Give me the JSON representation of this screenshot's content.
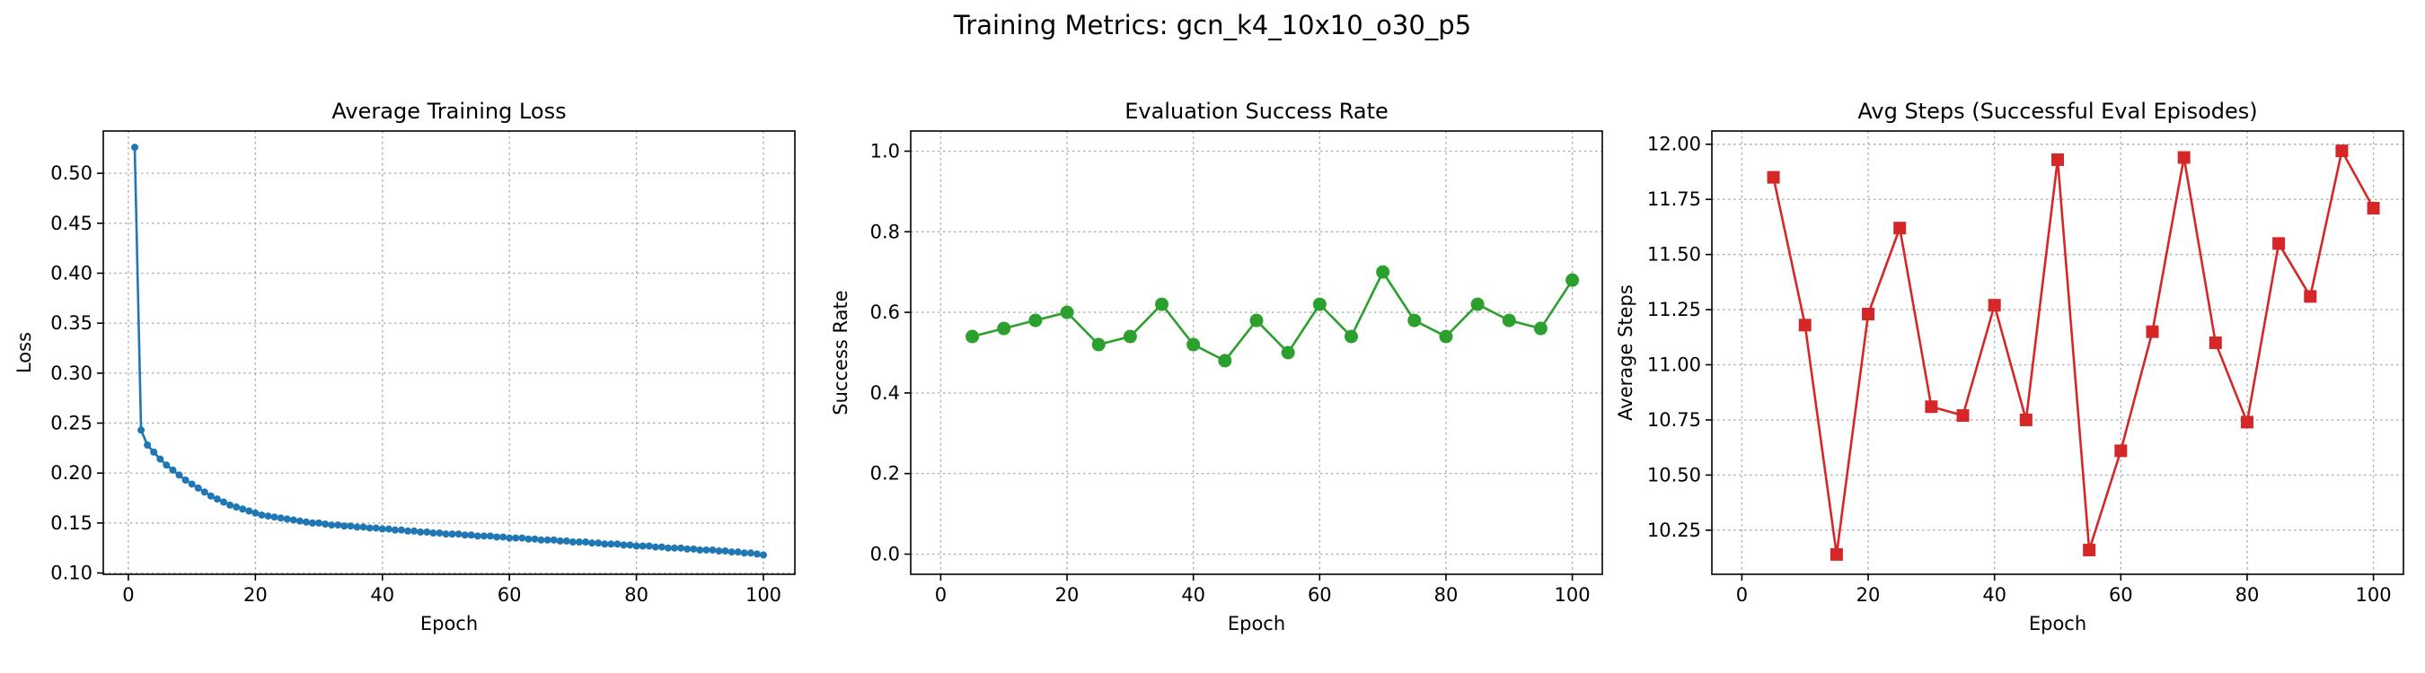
{
  "figure": {
    "suptitle": "Training Metrics: gcn_k4_10x10_o30_p5"
  },
  "chart_data": [
    {
      "type": "line",
      "title": "Average Training Loss",
      "xlabel": "Epoch",
      "ylabel": "Loss",
      "xlim": [
        -3.95,
        104.95
      ],
      "ylim": [
        0.0987,
        0.5423
      ],
      "xticks": [
        0,
        20,
        40,
        60,
        80,
        100
      ],
      "xtick_labels": [
        "0",
        "20",
        "40",
        "60",
        "80",
        "100"
      ],
      "yticks": [
        0.1,
        0.15,
        0.2,
        0.25,
        0.3,
        0.35,
        0.4,
        0.45,
        0.5
      ],
      "ytick_labels": [
        "0.10",
        "0.15",
        "0.20",
        "0.25",
        "0.30",
        "0.35",
        "0.40",
        "0.45",
        "0.50"
      ],
      "grid": true,
      "marker": "circle-small",
      "color": "#1f77b4",
      "series": [
        {
          "x": [
            1,
            2,
            3,
            4,
            5,
            6,
            7,
            8,
            9,
            10,
            11,
            12,
            13,
            14,
            15,
            16,
            17,
            18,
            19,
            20,
            21,
            22,
            23,
            24,
            25,
            26,
            27,
            28,
            29,
            30,
            31,
            32,
            33,
            34,
            35,
            36,
            37,
            38,
            39,
            40,
            41,
            42,
            43,
            44,
            45,
            46,
            47,
            48,
            49,
            50,
            51,
            52,
            53,
            54,
            55,
            56,
            57,
            58,
            59,
            60,
            61,
            62,
            63,
            64,
            65,
            66,
            67,
            68,
            69,
            70,
            71,
            72,
            73,
            74,
            75,
            76,
            77,
            78,
            79,
            80,
            81,
            82,
            83,
            84,
            85,
            86,
            87,
            88,
            89,
            90,
            91,
            92,
            93,
            94,
            95,
            96,
            97,
            98,
            99,
            100
          ],
          "values": [
            0.526,
            0.243,
            0.228,
            0.221,
            0.214,
            0.208,
            0.203,
            0.198,
            0.193,
            0.189,
            0.185,
            0.181,
            0.177,
            0.174,
            0.171,
            0.168,
            0.166,
            0.164,
            0.162,
            0.16,
            0.158,
            0.157,
            0.156,
            0.155,
            0.154,
            0.153,
            0.152,
            0.151,
            0.15,
            0.15,
            0.149,
            0.148,
            0.148,
            0.147,
            0.147,
            0.146,
            0.146,
            0.145,
            0.145,
            0.144,
            0.144,
            0.143,
            0.143,
            0.142,
            0.142,
            0.141,
            0.141,
            0.14,
            0.14,
            0.139,
            0.139,
            0.139,
            0.138,
            0.138,
            0.137,
            0.137,
            0.137,
            0.136,
            0.136,
            0.135,
            0.135,
            0.135,
            0.134,
            0.134,
            0.133,
            0.133,
            0.133,
            0.132,
            0.132,
            0.131,
            0.131,
            0.131,
            0.13,
            0.13,
            0.129,
            0.129,
            0.129,
            0.128,
            0.128,
            0.127,
            0.127,
            0.127,
            0.126,
            0.126,
            0.125,
            0.125,
            0.125,
            0.124,
            0.124,
            0.123,
            0.123,
            0.123,
            0.122,
            0.122,
            0.121,
            0.121,
            0.12,
            0.12,
            0.119,
            0.118
          ]
        }
      ]
    },
    {
      "type": "line",
      "title": "Evaluation Success Rate",
      "xlabel": "Epoch",
      "ylabel": "Success Rate",
      "xlim": [
        -4.75,
        104.75
      ],
      "ylim": [
        -0.05,
        1.05
      ],
      "xticks": [
        0,
        20,
        40,
        60,
        80,
        100
      ],
      "xtick_labels": [
        "0",
        "20",
        "40",
        "60",
        "80",
        "100"
      ],
      "yticks": [
        0.0,
        0.2,
        0.4,
        0.6,
        0.8,
        1.0
      ],
      "ytick_labels": [
        "0.0",
        "0.2",
        "0.4",
        "0.6",
        "0.8",
        "1.0"
      ],
      "grid": true,
      "marker": "circle",
      "color": "#2ca02c",
      "series": [
        {
          "x": [
            5,
            10,
            15,
            20,
            25,
            30,
            35,
            40,
            45,
            50,
            55,
            60,
            65,
            70,
            75,
            80,
            85,
            90,
            95,
            100
          ],
          "values": [
            0.54,
            0.56,
            0.58,
            0.6,
            0.52,
            0.54,
            0.62,
            0.52,
            0.48,
            0.58,
            0.5,
            0.62,
            0.54,
            0.7,
            0.58,
            0.54,
            0.62,
            0.58,
            0.56,
            0.68
          ]
        }
      ]
    },
    {
      "type": "line",
      "title": "Avg Steps (Successful Eval Episodes)",
      "xlabel": "Epoch",
      "ylabel": "Average Steps",
      "xlim": [
        -4.75,
        104.75
      ],
      "ylim": [
        10.05,
        12.06
      ],
      "xticks": [
        0,
        20,
        40,
        60,
        80,
        100
      ],
      "xtick_labels": [
        "0",
        "20",
        "40",
        "60",
        "80",
        "100"
      ],
      "yticks": [
        10.25,
        10.5,
        10.75,
        11.0,
        11.25,
        11.5,
        11.75,
        12.0
      ],
      "ytick_labels": [
        "10.25",
        "10.50",
        "10.75",
        "11.00",
        "11.25",
        "11.50",
        "11.75",
        "12.00"
      ],
      "grid": true,
      "marker": "square",
      "color": "#d62728",
      "series": [
        {
          "x": [
            5,
            10,
            15,
            20,
            25,
            30,
            35,
            40,
            45,
            50,
            55,
            60,
            65,
            70,
            75,
            80,
            85,
            90,
            95,
            100
          ],
          "values": [
            11.85,
            11.18,
            10.14,
            11.23,
            11.62,
            10.81,
            10.77,
            11.27,
            10.75,
            11.93,
            10.16,
            10.61,
            11.15,
            11.94,
            11.1,
            10.74,
            11.55,
            11.31,
            11.97,
            11.71
          ]
        }
      ]
    }
  ]
}
